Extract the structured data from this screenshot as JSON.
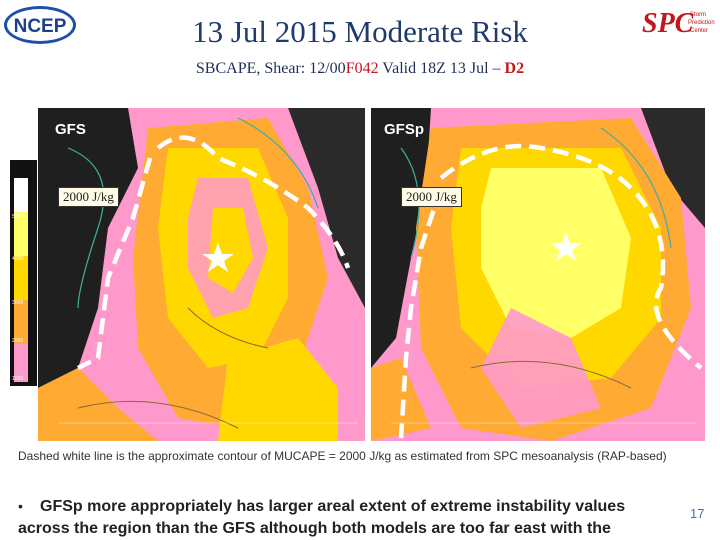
{
  "slide": {
    "title": "13 Jul 2015 Moderate Risk",
    "subtitle_prefix": "SBCAPE, Shear: 12/00",
    "subtitle_f042": "F042",
    "subtitle_mid": " Valid 18Z 13 Jul – ",
    "subtitle_d2": "D2",
    "page_number": "17"
  },
  "logos": {
    "ncep": "NCEP",
    "spc": "Storm Prediction Center"
  },
  "colorbar": {
    "ticks": [
      "5000",
      "4000",
      "3000",
      "2000",
      "1000"
    ],
    "colors": [
      "#ffffff",
      "#ffff66",
      "#ffd800",
      "#ffaa33",
      "#ff99cc"
    ]
  },
  "maps": {
    "left": {
      "model": "GFS",
      "cape_label": "2000 J/kg"
    },
    "right": {
      "model": "GFSp",
      "cape_label": "2000 J/kg"
    }
  },
  "caption": "Dashed white line is the approximate contour of MUCAPE = 2000 J/kg as estimated from SPC mesoanalysis (RAP-based)",
  "bullet": "GFSp more appropriately has larger areal extent of extreme instability values across the region than the GFS although both models are too far east with the",
  "colors": {
    "title": "#1f3a6e",
    "highlight": "#c0181e",
    "cape_yellow": "#ffd800",
    "cape_pink": "#ff99cc",
    "cape_orange": "#ffaa33"
  }
}
